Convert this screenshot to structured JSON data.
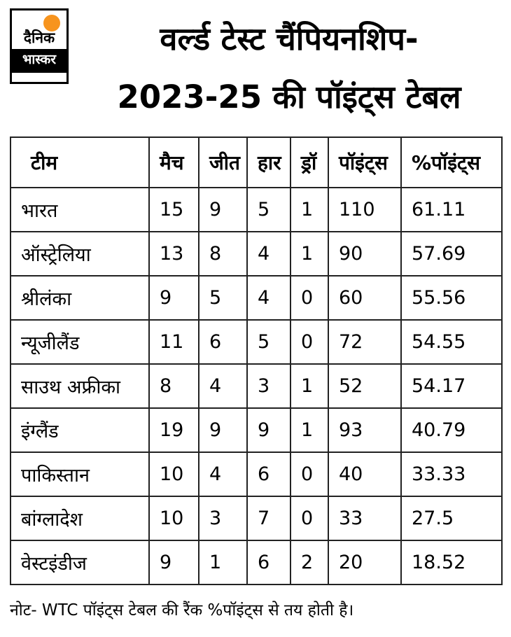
{
  "logo": {
    "line1": "दैनिक",
    "line2": "भास्कर"
  },
  "title": {
    "line1": "वर्ल्ड टेस्ट चैंपियनशिप-",
    "line2": "2023-25 की पॉइंट्स टेबल"
  },
  "chart_data": {
    "type": "table",
    "title": "वर्ल्ड टेस्ट चैंपियनशिप- 2023-25 की पॉइंट्स टेबल",
    "columns": [
      "टीम",
      "मैच",
      "जीत",
      "हार",
      "ड्रॉ",
      "पॉइंट्स",
      "%पॉइंट्स"
    ],
    "rows": [
      [
        "भारत",
        "15",
        "9",
        "5",
        "1",
        "110",
        "61.11"
      ],
      [
        "ऑस्ट्रेलिया",
        "13",
        "8",
        "4",
        "1",
        "90",
        "57.69"
      ],
      [
        "श्रीलंका",
        "9",
        "5",
        "4",
        "0",
        "60",
        "55.56"
      ],
      [
        "न्यूजीलैंड",
        "11",
        "6",
        "5",
        "0",
        "72",
        "54.55"
      ],
      [
        "साउथ अफ्रीका",
        "8",
        "4",
        "3",
        "1",
        "52",
        "54.17"
      ],
      [
        "इंग्लैंड",
        "19",
        "9",
        "9",
        "1",
        "93",
        "40.79"
      ],
      [
        "पाकिस्तान",
        "10",
        "4",
        "6",
        "0",
        "40",
        "33.33"
      ],
      [
        "बांग्लादेश",
        "10",
        "3",
        "7",
        "0",
        "33",
        "27.5"
      ],
      [
        "वेस्टइंडीज",
        "9",
        "1",
        "6",
        "2",
        "20",
        "18.52"
      ]
    ]
  },
  "note": "नोट- WTC पॉइंट्स टेबल की रैंक %पॉइंट्स से तय होती है।",
  "colors": {
    "accent": "#f7941e",
    "text": "#000000",
    "border": "#222222"
  }
}
